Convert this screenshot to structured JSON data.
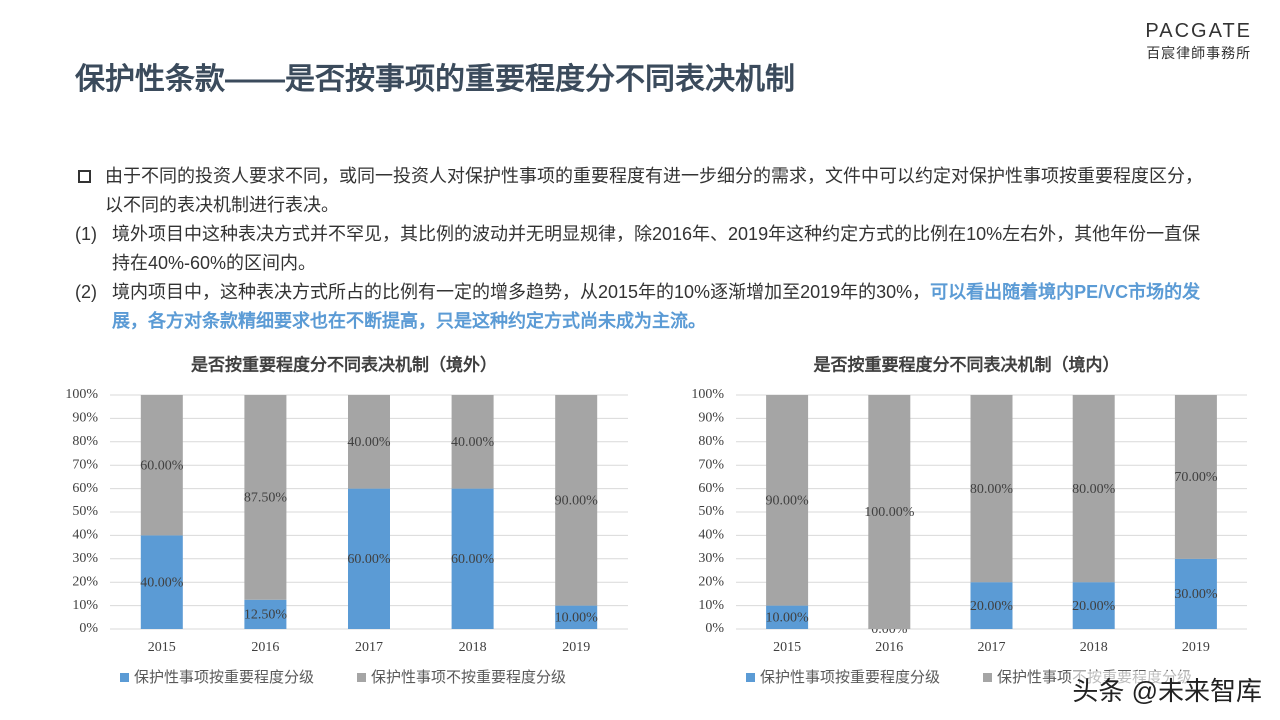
{
  "header": {
    "title": "保护性条款——是否按事项的重要程度分不同表决机制",
    "logo": "PACGATE",
    "logo_sub": "百宸律師事務所"
  },
  "paragraphs": [
    {
      "text": "由于不同的投资人要求不同，或同一投资人对保护性事项的重要程度有进一步细分的需求，文件中可以约定对保护性事项按重要程度区分，以不同的表决机制进行表决。"
    },
    {
      "marker": "(1)",
      "text": "境外项目中这种表决方式并不罕见，其比例的波动并无明显规律，除2016年、2019年这种约定方式的比例在10%左右外，其他年份一直保持在40%-60%的区间内。"
    },
    {
      "marker": "(2)",
      "text": "境内项目中，这种表决方式所占的比例有一定的增多趋势，从2015年的10%逐渐增加至2019年的30%，",
      "highlight": "可以看出随着境内PE/VC市场的发展，各方对条款精细要求也在不断提高，只是这种约定方式尚未成为主流。"
    }
  ],
  "chart_data": [
    {
      "type": "bar",
      "stacked": true,
      "title": "是否按重要程度分不同表决机制（境外）",
      "categories": [
        "2015",
        "2016",
        "2017",
        "2018",
        "2019"
      ],
      "series": [
        {
          "name": "保护性事项按重要程度分级",
          "color": "#5b9bd5",
          "values": [
            40,
            12.5,
            60,
            60,
            10
          ],
          "value_labels": [
            "40.00%",
            "12.50%",
            "60.00%",
            "60.00%",
            "10.00%"
          ]
        },
        {
          "name": "保护性事项不按重要程度分级",
          "color": "#a5a5a5",
          "values": [
            60,
            87.5,
            40,
            40,
            90
          ],
          "value_labels": [
            "60.00%",
            "87.50%",
            "40.00%",
            "40.00%",
            "90.00%"
          ]
        }
      ],
      "ylim": [
        0,
        100
      ],
      "yticks": [
        {
          "value": 0,
          "label": "0%"
        },
        {
          "value": 10,
          "label": "10%"
        },
        {
          "value": 20,
          "label": "20%"
        },
        {
          "value": 30,
          "label": "30%"
        },
        {
          "value": 40,
          "label": "40%"
        },
        {
          "value": 50,
          "label": "50%"
        },
        {
          "value": 60,
          "label": "60%"
        },
        {
          "value": 70,
          "label": "70%"
        },
        {
          "value": 80,
          "label": "80%"
        },
        {
          "value": 90,
          "label": "90%"
        },
        {
          "value": 100,
          "label": "100%"
        }
      ],
      "grid": true,
      "legend": "bottom"
    },
    {
      "type": "bar",
      "stacked": true,
      "title": "是否按重要程度分不同表决机制（境内）",
      "categories": [
        "2015",
        "2016",
        "2017",
        "2018",
        "2019"
      ],
      "series": [
        {
          "name": "保护性事项按重要程度分级",
          "color": "#5b9bd5",
          "values": [
            10,
            0,
            20,
            20,
            30
          ],
          "value_labels": [
            "10.00%",
            "0.00%",
            "20.00%",
            "20.00%",
            "30.00%"
          ]
        },
        {
          "name": "保护性事项不按重要程度分级",
          "color": "#a5a5a5",
          "values": [
            90,
            100,
            80,
            80,
            70
          ],
          "value_labels": [
            "90.00%",
            "100.00%",
            "80.00%",
            "80.00%",
            "70.00%"
          ]
        }
      ],
      "ylim": [
        0,
        100
      ],
      "yticks": [
        {
          "value": 0,
          "label": "0%"
        },
        {
          "value": 10,
          "label": "10%"
        },
        {
          "value": 20,
          "label": "20%"
        },
        {
          "value": 30,
          "label": "30%"
        },
        {
          "value": 40,
          "label": "40%"
        },
        {
          "value": 50,
          "label": "50%"
        },
        {
          "value": 60,
          "label": "60%"
        },
        {
          "value": 70,
          "label": "70%"
        },
        {
          "value": 80,
          "label": "80%"
        },
        {
          "value": 90,
          "label": "90%"
        },
        {
          "value": 100,
          "label": "100%"
        }
      ],
      "grid": true,
      "legend": "bottom"
    }
  ],
  "watermark": "头条 @未来智库"
}
